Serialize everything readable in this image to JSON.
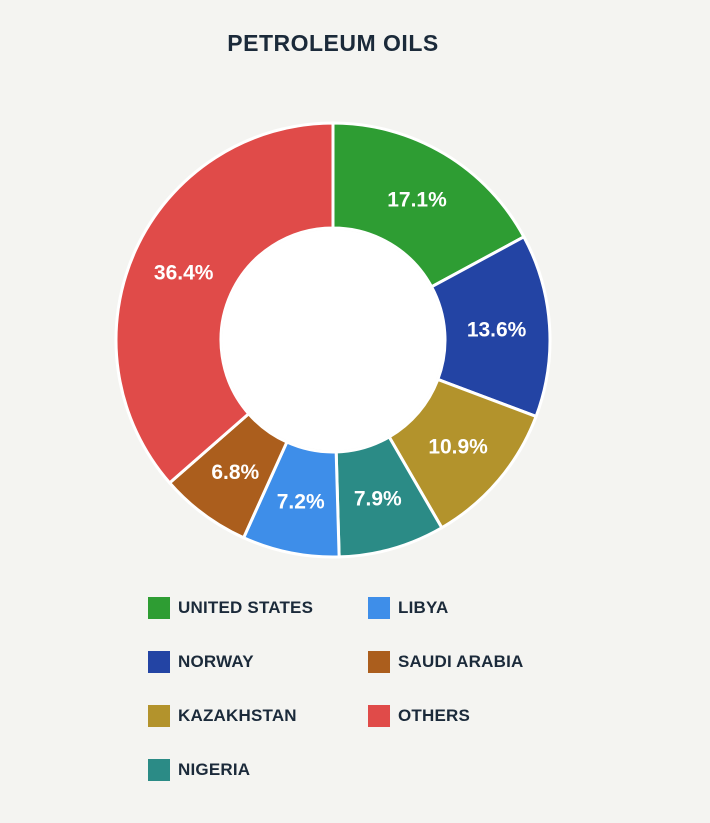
{
  "page": {
    "background_color": "#f4f4f1",
    "text_color": "#1b2a3a"
  },
  "title": "PETROLEUM OILS",
  "chart_data": {
    "type": "pie",
    "subtype": "donut",
    "title": "PETROLEUM OILS",
    "unit": "%",
    "start_angle_deg": 0,
    "direction": "clockwise",
    "slices": [
      {
        "label": "UNITED STATES",
        "value": 17.1,
        "display": "17.1%",
        "color": "#2e9d33"
      },
      {
        "label": "NORWAY",
        "value": 13.6,
        "display": "13.6%",
        "color": "#2344a4"
      },
      {
        "label": "KAZAKHSTAN",
        "value": 10.9,
        "display": "10.9%",
        "color": "#b3932c"
      },
      {
        "label": "NIGERIA",
        "value": 7.9,
        "display": "7.9%",
        "color": "#2b8b86"
      },
      {
        "label": "LIBYA",
        "value": 7.2,
        "display": "7.2%",
        "color": "#3e8ee9"
      },
      {
        "label": "SAUDI ARABIA",
        "value": 6.8,
        "display": "6.8%",
        "color": "#ab5e1d"
      },
      {
        "label": "OTHERS",
        "value": 36.4,
        "display": "36.4%",
        "color": "#e04b49"
      }
    ],
    "slice_border_color": "#ffffff",
    "hole_color": "#ffffff",
    "legend": {
      "position": "bottom",
      "columns": [
        [
          "UNITED STATES",
          "NORWAY",
          "KAZAKHSTAN",
          "NIGERIA"
        ],
        [
          "LIBYA",
          "SAUDI ARABIA",
          "OTHERS"
        ]
      ]
    }
  }
}
